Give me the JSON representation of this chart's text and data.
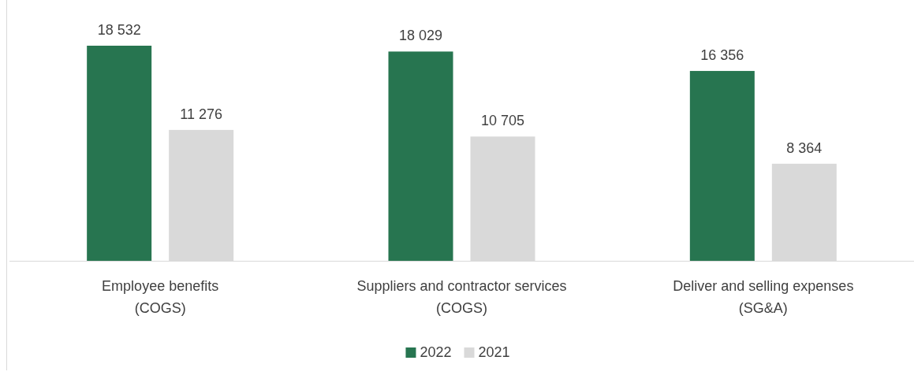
{
  "chart_data": {
    "type": "bar",
    "categories": [
      "Employee benefits\n(COGS)",
      "Suppliers and contractor services\n(COGS)",
      "Deliver and selling expenses\n(SG&A)"
    ],
    "series": [
      {
        "name": "2022",
        "color": "#277550",
        "values": [
          18532,
          18029,
          16356
        ]
      },
      {
        "name": "2021",
        "color": "#d9d9d9",
        "values": [
          11276,
          10705,
          8364
        ]
      }
    ],
    "data_labels": true,
    "legend": "bottom"
  }
}
